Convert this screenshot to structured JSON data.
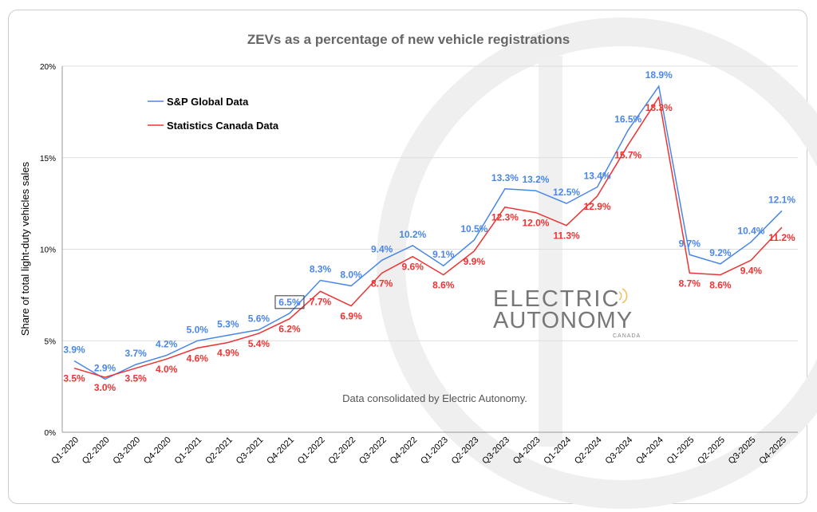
{
  "chart_data": {
    "type": "line",
    "title": "ZEVs as a percentage of new vehicle registrations",
    "ylabel": "Share of total light-duty vehicles sales",
    "xlabel": "",
    "ylim": [
      0,
      20
    ],
    "yticks": [
      "0%",
      "5%",
      "10%",
      "15%",
      "20%"
    ],
    "ytick_values": [
      0,
      5,
      10,
      15,
      20
    ],
    "grid": true,
    "legend": "top-left",
    "categories": [
      "Q1-2020",
      "Q2-2020",
      "Q3-2020",
      "Q4-2020",
      "Q1-2021",
      "Q2-2021",
      "Q3-2021",
      "Q4-2021",
      "Q1-2022",
      "Q2-2022",
      "Q3-2022",
      "Q4-2022",
      "Q1-2023",
      "Q2-2023",
      "Q3-2023",
      "Q4-2023",
      "Q1-2024",
      "Q2-2024",
      "Q3-2024",
      "Q4-2024",
      "Q1-2025",
      "Q2-2025",
      "Q3-2025",
      "Q4-2025"
    ],
    "series": [
      {
        "name": "S&P Global Data",
        "color": "#4a86e8",
        "values": [
          3.9,
          2.9,
          3.7,
          4.2,
          5.0,
          5.3,
          5.6,
          6.5,
          8.3,
          8.0,
          9.4,
          10.2,
          9.1,
          10.5,
          13.3,
          13.2,
          12.5,
          13.4,
          16.5,
          18.9,
          9.7,
          9.2,
          10.4,
          12.1
        ]
      },
      {
        "name": "Statistics Canada Data",
        "color": "#ee3333",
        "values": [
          3.5,
          3.0,
          3.5,
          4.0,
          4.6,
          4.9,
          5.4,
          6.2,
          7.7,
          6.9,
          8.7,
          9.6,
          8.6,
          9.9,
          12.3,
          12.0,
          11.3,
          12.9,
          15.7,
          18.3,
          8.7,
          8.6,
          9.4,
          11.2
        ]
      }
    ],
    "highlighted_label": {
      "series": 0,
      "category": "Q4-2021"
    },
    "annotation": "Data consolidated by Electric Autonomy."
  },
  "logo": {
    "line1": "ELECTRIC",
    "line2": "AUTONOMY",
    "line3": "CANADA"
  }
}
